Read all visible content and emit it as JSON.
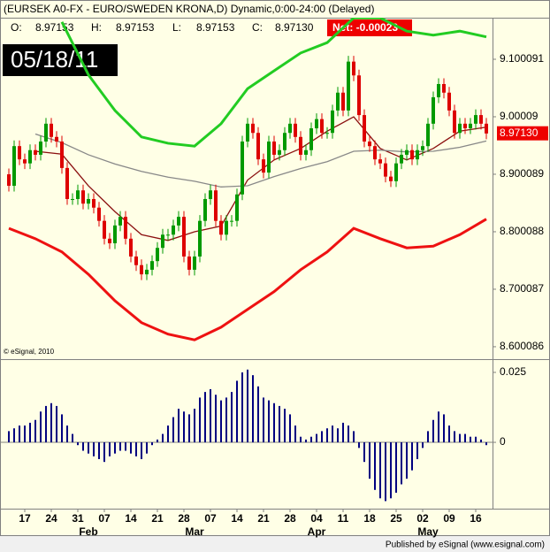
{
  "header": {
    "title": "(EURSEK A0-FX - EURO/SWEDEN KRONA,D) Dynamic,0:00-24:00 (Delayed)",
    "ohlc": [
      {
        "label": "O:",
        "value": "8.97153"
      },
      {
        "label": "H:",
        "value": "8.97153"
      },
      {
        "label": "L:",
        "value": "8.97153"
      },
      {
        "label": "C:",
        "value": "8.97130"
      }
    ],
    "net": "Net: -0.00023"
  },
  "date_box": "05/18/11",
  "copyright": "© eSignal, 2010",
  "footer": "Published by eSignal (www.esignal.com)",
  "chart_data": [
    {
      "type": "candlestick",
      "categories": [
        null,
        null,
        null,
        "17",
        null,
        null,
        null,
        null,
        "24",
        null,
        null,
        null,
        null,
        "31",
        null,
        null,
        null,
        null,
        "07",
        null,
        null,
        null,
        null,
        "14",
        null,
        null,
        null,
        null,
        "21",
        null,
        null,
        null,
        null,
        "28",
        null,
        null,
        null,
        null,
        "07",
        null,
        null,
        null,
        null,
        "14",
        null,
        null,
        null,
        null,
        "21",
        null,
        null,
        null,
        null,
        "28",
        null,
        null,
        null,
        null,
        "04",
        null,
        null,
        null,
        null,
        "11",
        null,
        null,
        null,
        null,
        "18",
        null,
        null,
        null,
        null,
        "25",
        null,
        null,
        null,
        null,
        "02",
        null,
        null,
        null,
        null,
        "09",
        null,
        null,
        null,
        null,
        "16",
        null,
        null
      ],
      "month_categories": [
        null,
        null,
        null,
        null,
        null,
        null,
        null,
        null,
        null,
        null,
        null,
        null,
        null,
        null,
        null,
        "Feb",
        null,
        null,
        null,
        null,
        null,
        null,
        null,
        null,
        null,
        null,
        null,
        null,
        null,
        null,
        null,
        null,
        null,
        null,
        null,
        "Mar",
        null,
        null,
        null,
        null,
        null,
        null,
        null,
        null,
        null,
        null,
        null,
        null,
        null,
        null,
        null,
        null,
        null,
        null,
        null,
        null,
        null,
        null,
        "Apr",
        null,
        null,
        null,
        null,
        null,
        null,
        null,
        null,
        null,
        null,
        null,
        null,
        null,
        null,
        null,
        null,
        null,
        null,
        null,
        null,
        "May",
        null,
        null,
        null,
        null,
        null,
        null,
        null,
        null,
        null,
        null,
        null
      ],
      "open": [
        8.9,
        8.88,
        8.949,
        8.926,
        8.919,
        8.942,
        8.934,
        8.957,
        8.988,
        8.965,
        8.957,
        8.911,
        8.857,
        8.857,
        8.872,
        8.849,
        8.857,
        8.842,
        8.819,
        8.788,
        8.78,
        8.811,
        8.826,
        8.788,
        8.757,
        8.742,
        8.726,
        8.734,
        8.749,
        8.772,
        8.795,
        8.795,
        8.811,
        8.826,
        8.757,
        8.734,
        8.757,
        8.819,
        8.857,
        8.872,
        8.819,
        8.795,
        8.819,
        8.819,
        8.865,
        8.957,
        8.988,
        8.972,
        8.926,
        8.903,
        8.957,
        8.934,
        8.942,
        8.972,
        8.988,
        8.965,
        8.934,
        8.942,
        8.98,
        8.996,
        8.972,
        8.972,
        9.011,
        9.042,
        9.011,
        9.096,
        9.072,
        9.003,
        8.957,
        8.949,
        8.926,
        8.919,
        8.896,
        8.888,
        8.919,
        8.934,
        8.942,
        8.926,
        8.942,
        8.949,
        8.988,
        9.034,
        9.057,
        9.042,
        9.011,
        8.972,
        8.988,
        8.98,
        8.988,
        9.003,
        8.988
      ],
      "high": [
        8.91,
        8.959,
        8.959,
        8.936,
        8.952,
        8.952,
        8.967,
        8.998,
        8.998,
        8.975,
        8.967,
        8.921,
        8.867,
        8.882,
        8.882,
        8.867,
        8.867,
        8.852,
        8.829,
        8.798,
        8.821,
        8.836,
        8.836,
        8.798,
        8.767,
        8.752,
        8.744,
        8.759,
        8.782,
        8.805,
        8.805,
        8.821,
        8.836,
        8.836,
        8.767,
        8.767,
        8.829,
        8.867,
        8.882,
        8.882,
        8.829,
        8.829,
        8.829,
        8.875,
        8.967,
        8.998,
        8.998,
        8.982,
        8.936,
        8.967,
        8.967,
        8.952,
        8.982,
        8.998,
        8.998,
        8.975,
        8.952,
        8.99,
        9.006,
        9.006,
        8.982,
        9.021,
        9.052,
        9.052,
        9.106,
        9.106,
        9.082,
        9.013,
        8.967,
        8.959,
        8.936,
        8.929,
        8.906,
        8.929,
        8.944,
        8.952,
        8.952,
        8.952,
        8.959,
        8.998,
        9.044,
        9.067,
        9.067,
        9.052,
        9.021,
        8.998,
        8.998,
        8.998,
        9.013,
        9.013,
        8.998
      ],
      "low": [
        8.87,
        8.87,
        8.916,
        8.909,
        8.909,
        8.924,
        8.924,
        8.947,
        8.955,
        8.947,
        8.901,
        8.847,
        8.847,
        8.847,
        8.839,
        8.839,
        8.832,
        8.809,
        8.778,
        8.77,
        8.77,
        8.801,
        8.778,
        8.747,
        8.732,
        8.716,
        8.716,
        8.724,
        8.739,
        8.762,
        8.785,
        8.785,
        8.801,
        8.747,
        8.724,
        8.724,
        8.747,
        8.809,
        8.847,
        8.809,
        8.785,
        8.785,
        8.809,
        8.809,
        8.855,
        8.947,
        8.962,
        8.916,
        8.893,
        8.893,
        8.924,
        8.924,
        8.932,
        8.962,
        8.955,
        8.924,
        8.924,
        8.932,
        8.97,
        8.962,
        8.962,
        8.962,
        9.001,
        9.001,
        9.001,
        9.062,
        8.993,
        8.947,
        8.939,
        8.916,
        8.909,
        8.886,
        8.878,
        8.878,
        8.909,
        8.924,
        8.916,
        8.916,
        8.932,
        8.939,
        8.978,
        9.024,
        9.032,
        9.001,
        8.962,
        8.962,
        8.97,
        8.97,
        8.978,
        8.978,
        8.961
      ],
      "close": [
        8.88,
        8.949,
        8.926,
        8.919,
        8.942,
        8.934,
        8.957,
        8.988,
        8.965,
        8.957,
        8.911,
        8.857,
        8.857,
        8.872,
        8.849,
        8.857,
        8.842,
        8.819,
        8.788,
        8.78,
        8.811,
        8.826,
        8.788,
        8.757,
        8.742,
        8.726,
        8.734,
        8.749,
        8.772,
        8.795,
        8.795,
        8.811,
        8.826,
        8.757,
        8.734,
        8.757,
        8.819,
        8.857,
        8.872,
        8.819,
        8.795,
        8.819,
        8.819,
        8.865,
        8.957,
        8.988,
        8.972,
        8.926,
        8.903,
        8.957,
        8.934,
        8.942,
        8.972,
        8.988,
        8.965,
        8.934,
        8.942,
        8.98,
        8.996,
        8.972,
        8.972,
        9.011,
        9.042,
        9.011,
        9.096,
        9.072,
        9.003,
        8.957,
        8.949,
        8.926,
        8.919,
        8.896,
        8.888,
        8.919,
        8.934,
        8.942,
        8.926,
        8.942,
        8.949,
        8.988,
        9.034,
        9.057,
        9.042,
        9.011,
        8.972,
        8.988,
        8.98,
        8.988,
        9.003,
        8.988,
        8.971
      ],
      "up_color": "#009900",
      "down_color": "#dd0000",
      "lines": [
        {
          "color": "#22cc22",
          "x": [
            0,
            5,
            10,
            15,
            20,
            25,
            30,
            35,
            40,
            45,
            50,
            55,
            60,
            65,
            70,
            75,
            80,
            85,
            90
          ],
          "values": [
            null,
            null,
            9.165,
            9.073,
            9.011,
            8.965,
            8.954,
            8.949,
            8.988,
            9.049,
            9.08,
            9.111,
            9.129,
            9.172,
            9.172,
            9.149,
            9.142,
            9.149,
            9.139
          ]
        },
        {
          "color": "#ee1111",
          "x": [
            0,
            5,
            10,
            15,
            20,
            25,
            30,
            35,
            40,
            45,
            50,
            55,
            60,
            65,
            70,
            75,
            80,
            85,
            90
          ],
          "values": [
            8.806,
            8.788,
            8.765,
            8.726,
            8.68,
            8.642,
            8.622,
            8.612,
            8.634,
            8.665,
            8.696,
            8.734,
            8.765,
            8.806,
            8.788,
            8.772,
            8.775,
            8.795,
            8.822
          ]
        },
        {
          "color": "#8b1010",
          "x": [
            0,
            5,
            10,
            15,
            20,
            25,
            30,
            35,
            40,
            45,
            50,
            55,
            60,
            65,
            70,
            75,
            80,
            85,
            90
          ],
          "values": [
            null,
            8.94,
            8.935,
            8.88,
            8.835,
            8.795,
            8.785,
            8.8,
            8.81,
            8.89,
            8.925,
            8.945,
            8.975,
            9.0,
            8.945,
            8.925,
            8.945,
            8.975,
            8.982
          ]
        },
        {
          "color": "#888888",
          "x": [
            0,
            5,
            10,
            15,
            20,
            25,
            30,
            35,
            40,
            45,
            50,
            55,
            60,
            65,
            70,
            75,
            80,
            85,
            90
          ],
          "values": [
            null,
            8.97,
            8.955,
            8.934,
            8.918,
            8.905,
            8.895,
            8.888,
            8.878,
            8.88,
            8.896,
            8.91,
            8.922,
            8.94,
            8.942,
            8.939,
            8.94,
            8.947,
            8.958
          ]
        }
      ],
      "last_price": {
        "value": 8.9713,
        "label": "8.97130"
      },
      "ylim": [
        8.58,
        9.1724
      ],
      "yticks": [
        9.100091,
        9.00009,
        8.900089,
        8.800088,
        8.700087,
        8.600086
      ]
    },
    {
      "type": "bar",
      "color": "#000080",
      "values": [
        0.004,
        0.005,
        0.006,
        0.006,
        0.007,
        0.008,
        0.011,
        0.013,
        0.014,
        0.013,
        0.01,
        0.006,
        0.003,
        -0.001,
        -0.003,
        -0.004,
        -0.005,
        -0.006,
        -0.007,
        -0.005,
        -0.004,
        -0.003,
        -0.003,
        -0.004,
        -0.005,
        -0.006,
        -0.004,
        -0.001,
        0.001,
        0.003,
        0.006,
        0.009,
        0.012,
        0.011,
        0.01,
        0.012,
        0.016,
        0.018,
        0.019,
        0.017,
        0.015,
        0.016,
        0.018,
        0.022,
        0.025,
        0.026,
        0.024,
        0.02,
        0.016,
        0.015,
        0.014,
        0.013,
        0.012,
        0.01,
        0.006,
        0.002,
        0.001,
        0.002,
        0.003,
        0.004,
        0.005,
        0.006,
        0.005,
        0.007,
        0.006,
        0.004,
        -0.002,
        -0.007,
        -0.013,
        -0.017,
        -0.02,
        -0.021,
        -0.02,
        -0.018,
        -0.015,
        -0.013,
        -0.01,
        -0.006,
        -0.002,
        0.004,
        0.008,
        0.011,
        0.01,
        0.006,
        0.004,
        0.003,
        0.003,
        0.002,
        0.002,
        0.001,
        -0.001
      ],
      "ylim": [
        -0.0237,
        0.0291
      ],
      "yticks": [
        0.025,
        0
      ]
    }
  ]
}
